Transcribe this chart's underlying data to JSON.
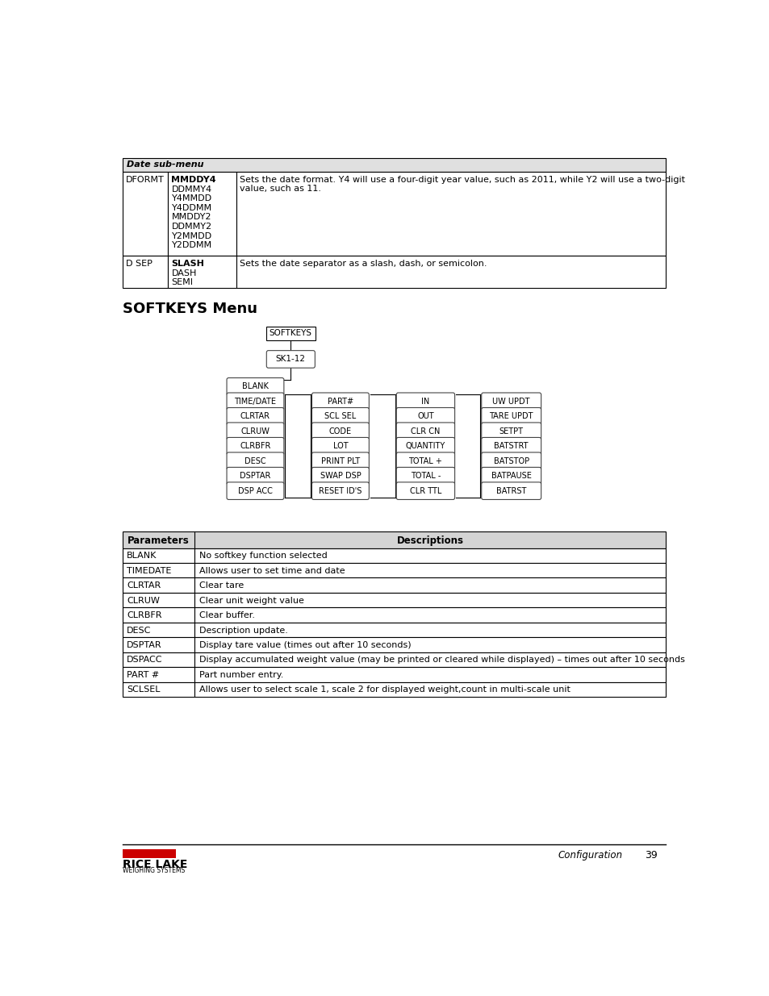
{
  "bg_color": "#ffffff",
  "date_table": {
    "col2_row1_items": [
      "MMDDY4",
      "DDMMY4",
      "Y4MMDD",
      "Y4DDMM",
      "MMDDY2",
      "DDMMY2",
      "Y2MMDD",
      "Y2DDMM"
    ],
    "col2_row2_items": [
      "SLASH",
      "DASH",
      "SEMI"
    ]
  },
  "diagram": {
    "col1_items": [
      "BLANK",
      "TIME/DATE",
      "CLRTAR",
      "CLRUW",
      "CLRBFR",
      "DESC",
      "DSPTAR",
      "DSP ACC"
    ],
    "col2_items": [
      "PART#",
      "SCL SEL",
      "CODE",
      "LOT",
      "PRINT PLT",
      "SWAP DSP",
      "RESET ID'S"
    ],
    "col3_items": [
      "IN",
      "OUT",
      "CLR CN",
      "QUANTITY",
      "TOTAL +",
      "TOTAL -",
      "CLR TTL"
    ],
    "col4_items": [
      "UW UPDT",
      "TARE UPDT",
      "SETPT",
      "BATSTRT",
      "BATSTOP",
      "BATPAUSE",
      "BATRST"
    ]
  },
  "params_table": {
    "rows": [
      [
        "BLANK",
        "No softkey function selected"
      ],
      [
        "TIMEDATE",
        "Allows user to set time and date"
      ],
      [
        "CLRTAR",
        "Clear tare"
      ],
      [
        "CLRUW",
        "Clear unit weight value"
      ],
      [
        "CLRBFR",
        "Clear buffer."
      ],
      [
        "DESC",
        "Description update."
      ],
      [
        "DSPTAR",
        "Display tare value (times out after 10 seconds)"
      ],
      [
        "DSPACC",
        "Display accumulated weight value (may be printed or cleared while displayed) – times out after 10 seconds"
      ],
      [
        "PART #",
        "Part number entry."
      ],
      [
        "SCLSEL",
        "Allows user to select scale 1, scale 2 for displayed weight,count in multi-scale unit"
      ]
    ]
  }
}
